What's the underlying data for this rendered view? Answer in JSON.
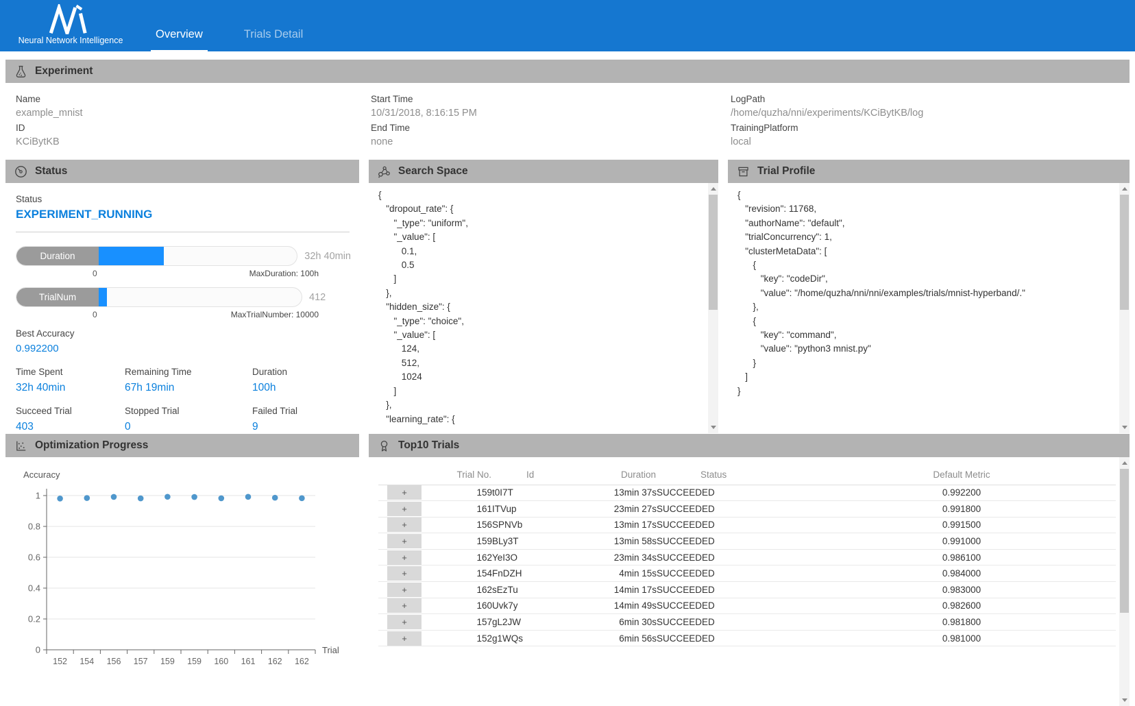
{
  "header": {
    "logo_caption": "Neural Network Intelligence",
    "tabs": [
      {
        "label": "Overview",
        "active": true
      },
      {
        "label": "Trials Detail",
        "active": false
      }
    ]
  },
  "experiment": {
    "title": "Experiment",
    "columns": [
      [
        {
          "label": "Name",
          "value": "example_mnist"
        },
        {
          "label": "ID",
          "value": "KCiBytKB"
        }
      ],
      [
        {
          "label": "Start Time",
          "value": "10/31/2018, 8:16:15 PM"
        },
        {
          "label": "End Time",
          "value": "none"
        }
      ],
      [
        {
          "label": "LogPath",
          "value": "/home/quzha/nni/experiments/KCiBytKB/log"
        },
        {
          "label": "TrainingPlatform",
          "value": "local"
        }
      ]
    ]
  },
  "status_panel": {
    "title": "Status",
    "status_label": "Status",
    "status_value": "EXPERIMENT_RUNNING",
    "bars": [
      {
        "label": "Duration",
        "value_text": "32h 40min",
        "percent": 32.67,
        "min": "0",
        "max_text": "MaxDuration: 100h"
      },
      {
        "label": "TrialNum",
        "value_text": "412",
        "percent": 4.12,
        "min": "0",
        "max_text": "MaxTrialNumber: 10000"
      }
    ],
    "best_accuracy": {
      "label": "Best Accuracy",
      "value": "0.992200"
    },
    "stats": [
      {
        "label": "Time Spent",
        "value": "32h 40min"
      },
      {
        "label": "Remaining Time",
        "value": "67h 19min"
      },
      {
        "label": "Duration",
        "value": "100h"
      },
      {
        "label": "Succeed Trial",
        "value": "403"
      },
      {
        "label": "Stopped Trial",
        "value": "0"
      },
      {
        "label": "Failed Trial",
        "value": "9"
      }
    ]
  },
  "search_space": {
    "title": "Search Space",
    "json_lines": [
      "{",
      "   \"dropout_rate\": {",
      "      \"_type\": \"uniform\",",
      "      \"_value\": [",
      "         0.1,",
      "         0.5",
      "      ]",
      "   },",
      "   \"hidden_size\": {",
      "      \"_type\": \"choice\",",
      "      \"_value\": [",
      "         124,",
      "         512,",
      "         1024",
      "      ]",
      "   },",
      "   \"learning_rate\": {"
    ]
  },
  "trial_profile": {
    "title": "Trial Profile",
    "json_lines": [
      "{",
      "   \"revision\": 11768,",
      "   \"authorName\": \"default\",",
      "   \"trialConcurrency\": 1,",
      "   \"clusterMetaData\": [",
      "      {",
      "         \"key\": \"codeDir\",",
      "         \"value\": \"/home/quzha/nni/nni/examples/trials/mnist-hyperband/.\"",
      "      },",
      "      {",
      "         \"key\": \"command\",",
      "         \"value\": \"python3 mnist.py\"",
      "      }",
      "   ]",
      "}"
    ]
  },
  "optimization": {
    "title": "Optimization Progress"
  },
  "chart_data": {
    "type": "scatter",
    "title": "Optimization Progress",
    "xlabel": "Trial",
    "ylabel": "Accuracy",
    "x_tick_labels": [
      "152",
      "154",
      "156",
      "157",
      "159",
      "159",
      "160",
      "161",
      "162",
      "162"
    ],
    "values": [
      0.981,
      0.984,
      0.9915,
      0.9818,
      0.9922,
      0.991,
      0.9826,
      0.9918,
      0.9861,
      0.983
    ],
    "ylim": [
      0,
      1
    ],
    "yticks": [
      0,
      0.2,
      0.4,
      0.6,
      0.8,
      1
    ],
    "grid": true,
    "legend": "none"
  },
  "top10": {
    "title": "Top10 Trials",
    "expand_symbol": "+",
    "columns": [
      "Trial No.",
      "Id",
      "Duration",
      "Status",
      "Default Metric"
    ],
    "rows": [
      {
        "trial_no": "159",
        "id": "t0I7T",
        "duration": "13min 37s",
        "status": "SUCCEEDED",
        "metric": "0.992200"
      },
      {
        "trial_no": "161",
        "id": "ITVup",
        "duration": "23min 27s",
        "status": "SUCCEEDED",
        "metric": "0.991800"
      },
      {
        "trial_no": "156",
        "id": "SPNVb",
        "duration": "13min 17s",
        "status": "SUCCEEDED",
        "metric": "0.991500"
      },
      {
        "trial_no": "159",
        "id": "BLy3T",
        "duration": "13min 58s",
        "status": "SUCCEEDED",
        "metric": "0.991000"
      },
      {
        "trial_no": "162",
        "id": "YeI3O",
        "duration": "23min 34s",
        "status": "SUCCEEDED",
        "metric": "0.986100"
      },
      {
        "trial_no": "154",
        "id": "FnDZH",
        "duration": "4min 15s",
        "status": "SUCCEEDED",
        "metric": "0.984000"
      },
      {
        "trial_no": "162",
        "id": "sEzTu",
        "duration": "14min 17s",
        "status": "SUCCEEDED",
        "metric": "0.983000"
      },
      {
        "trial_no": "160",
        "id": "Uvk7y",
        "duration": "14min 49s",
        "status": "SUCCEEDED",
        "metric": "0.982600"
      },
      {
        "trial_no": "157",
        "id": "gL2JW",
        "duration": "6min 30s",
        "status": "SUCCEEDED",
        "metric": "0.981800"
      },
      {
        "trial_no": "152",
        "id": "g1WQs",
        "duration": "6min 56s",
        "status": "SUCCEEDED",
        "metric": "0.981000"
      }
    ]
  },
  "colors": {
    "brand_blue": "#1577d0",
    "accent_blue": "#0b80dd",
    "progress_blue": "#1890ff",
    "success_green": "#0f9d58",
    "panel_header_gray": "#b3b3b3",
    "scatter_dot_blue": "#4f97cc"
  }
}
